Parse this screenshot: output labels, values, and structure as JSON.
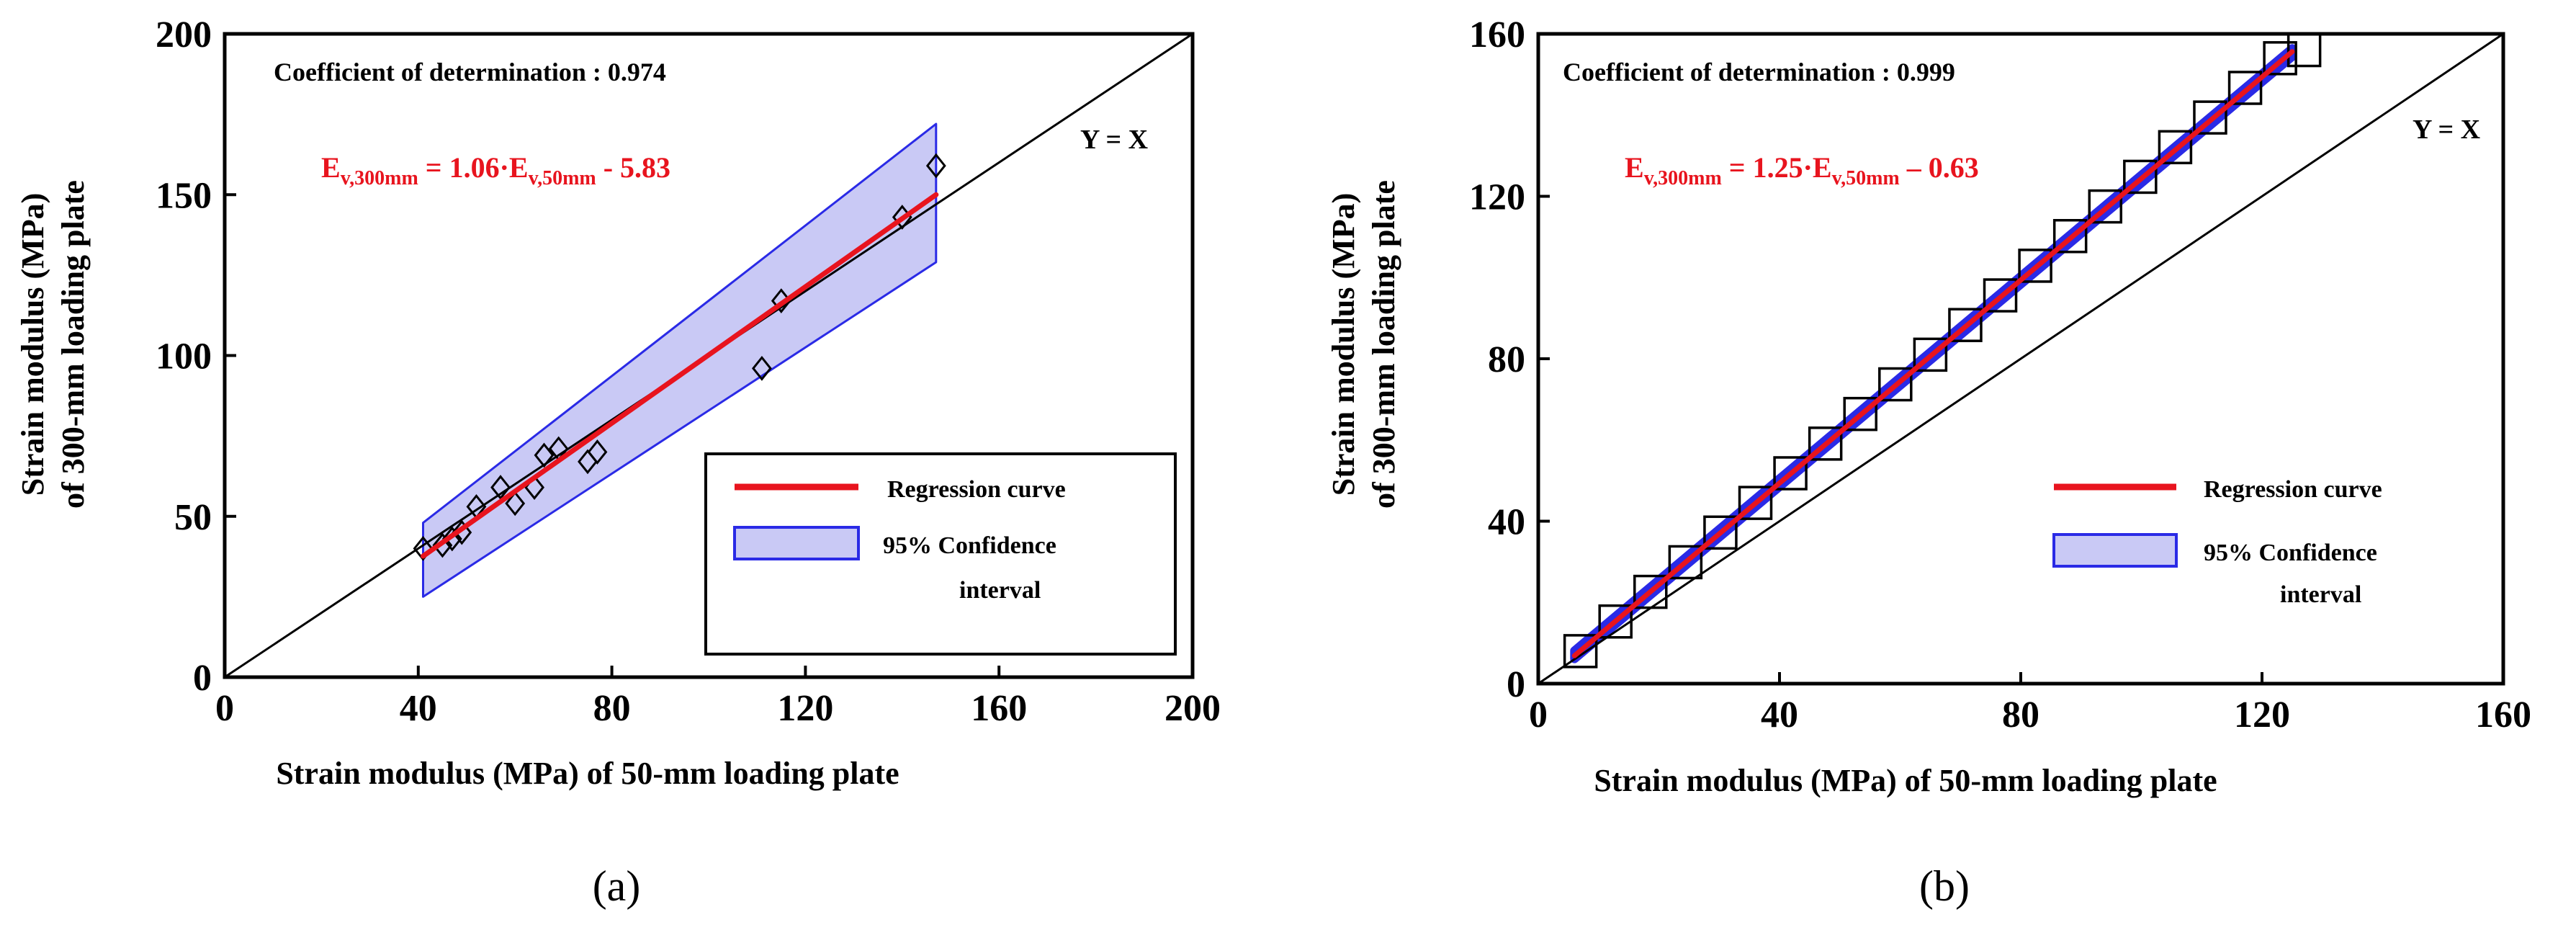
{
  "colors": {
    "regression": "#e8141e",
    "confidence_fill": "#c9c9f5",
    "confidence_edge": "#2a2ae6",
    "marker": "#000000",
    "axis": "#000000"
  },
  "chart_data": [
    {
      "id": "a",
      "type": "scatter",
      "caption": "(a)",
      "xlabel": "Strain modulus (MPa) of 50-mm loading plate",
      "ylabel_line1": "Strain modulus (MPa)",
      "ylabel_line2": "of 300-mm loading plate",
      "xlim": [
        0,
        200
      ],
      "ylim": [
        0,
        200
      ],
      "xticks": [
        "0",
        "40",
        "80",
        "120",
        "160",
        "200"
      ],
      "yticks": [
        "0",
        "50",
        "100",
        "150",
        "200"
      ],
      "xtick_values": [
        0,
        40,
        80,
        120,
        160,
        200
      ],
      "ytick_values": [
        0,
        50,
        100,
        150,
        200
      ],
      "marker": "diamond",
      "points": [
        {
          "x": 41,
          "y": 40
        },
        {
          "x": 45,
          "y": 41
        },
        {
          "x": 47,
          "y": 43
        },
        {
          "x": 49,
          "y": 45
        },
        {
          "x": 52,
          "y": 53
        },
        {
          "x": 57,
          "y": 59
        },
        {
          "x": 60,
          "y": 54
        },
        {
          "x": 64,
          "y": 59
        },
        {
          "x": 66,
          "y": 69
        },
        {
          "x": 69,
          "y": 71
        },
        {
          "x": 75,
          "y": 67
        },
        {
          "x": 77,
          "y": 70
        },
        {
          "x": 111,
          "y": 96
        },
        {
          "x": 115,
          "y": 117
        },
        {
          "x": 140,
          "y": 143
        },
        {
          "x": 147,
          "y": 159
        }
      ],
      "regression": {
        "slope": 1.06,
        "intercept": -5.83,
        "x_range": [
          41,
          147
        ]
      },
      "confidence_band": {
        "lower": [
          [
            41,
            25
          ],
          [
            147,
            129
          ]
        ],
        "upper": [
          [
            147,
            172
          ],
          [
            41,
            48
          ]
        ]
      },
      "identity_line_label": "Y = X",
      "coefficient_text": "Coefficient of determination : 0.974",
      "equation": {
        "e1": "E",
        "s1": "v,300mm",
        "mid": " = 1.06·E",
        "s2": "v,50mm",
        "tail": " - 5.83"
      },
      "legend": {
        "position": "bottom-right",
        "regression_label": "Regression curve",
        "ci_label_line1": "95% Confidence",
        "ci_label_line2": "interval"
      }
    },
    {
      "id": "b",
      "type": "scatter",
      "caption": "(b)",
      "xlabel": "Strain modulus (MPa) of 50-mm loading plate",
      "ylabel_line1": "Strain modulus (MPa)",
      "ylabel_line2": "of 300-mm loading plate",
      "xlim": [
        0,
        160
      ],
      "ylim": [
        0,
        160
      ],
      "xticks": [
        "0",
        "40",
        "80",
        "120",
        "160"
      ],
      "yticks": [
        "0",
        "40",
        "80",
        "120",
        "160"
      ],
      "xtick_values": [
        0,
        40,
        80,
        120,
        160
      ],
      "ytick_values": [
        0,
        40,
        80,
        120,
        160
      ],
      "marker": "square",
      "points": [
        {
          "x": 7,
          "y": 8
        },
        {
          "x": 12.8,
          "y": 15.3
        },
        {
          "x": 18.6,
          "y": 22.6
        },
        {
          "x": 24.4,
          "y": 29.9
        },
        {
          "x": 30.2,
          "y": 37.2
        },
        {
          "x": 36,
          "y": 44.5
        },
        {
          "x": 41.8,
          "y": 51.8
        },
        {
          "x": 47.6,
          "y": 59.1
        },
        {
          "x": 53.4,
          "y": 66.4
        },
        {
          "x": 59.2,
          "y": 73.7
        },
        {
          "x": 65,
          "y": 81
        },
        {
          "x": 70.8,
          "y": 88.3
        },
        {
          "x": 76.6,
          "y": 95.6
        },
        {
          "x": 82.4,
          "y": 102.9
        },
        {
          "x": 88.2,
          "y": 110.2
        },
        {
          "x": 94,
          "y": 117.5
        },
        {
          "x": 99.8,
          "y": 124.8
        },
        {
          "x": 105.6,
          "y": 132.1
        },
        {
          "x": 111.4,
          "y": 139.4
        },
        {
          "x": 117.2,
          "y": 146.7
        },
        {
          "x": 123,
          "y": 154
        },
        {
          "x": 127,
          "y": 156
        }
      ],
      "regression": {
        "slope": 1.25,
        "intercept": -0.63,
        "x_range": [
          6,
          125
        ]
      },
      "confidence_band": {
        "lower": [
          [
            6,
            6.1
          ],
          [
            125,
            154.4
          ]
        ],
        "upper": [
          [
            125,
            156.4
          ],
          [
            6,
            8.1
          ]
        ]
      },
      "identity_line_label": "Y = X",
      "coefficient_text": "Coefficient of determination : 0.999",
      "equation": {
        "e1": "E",
        "s1": "v,300mm",
        "mid": " = 1.25·E",
        "s2": "v,50mm",
        "tail": " – 0.63"
      },
      "legend": {
        "position": "bottom-right",
        "regression_label": "Regression curve",
        "ci_label_line1": "95% Confidence",
        "ci_label_line2": "interval"
      }
    }
  ]
}
